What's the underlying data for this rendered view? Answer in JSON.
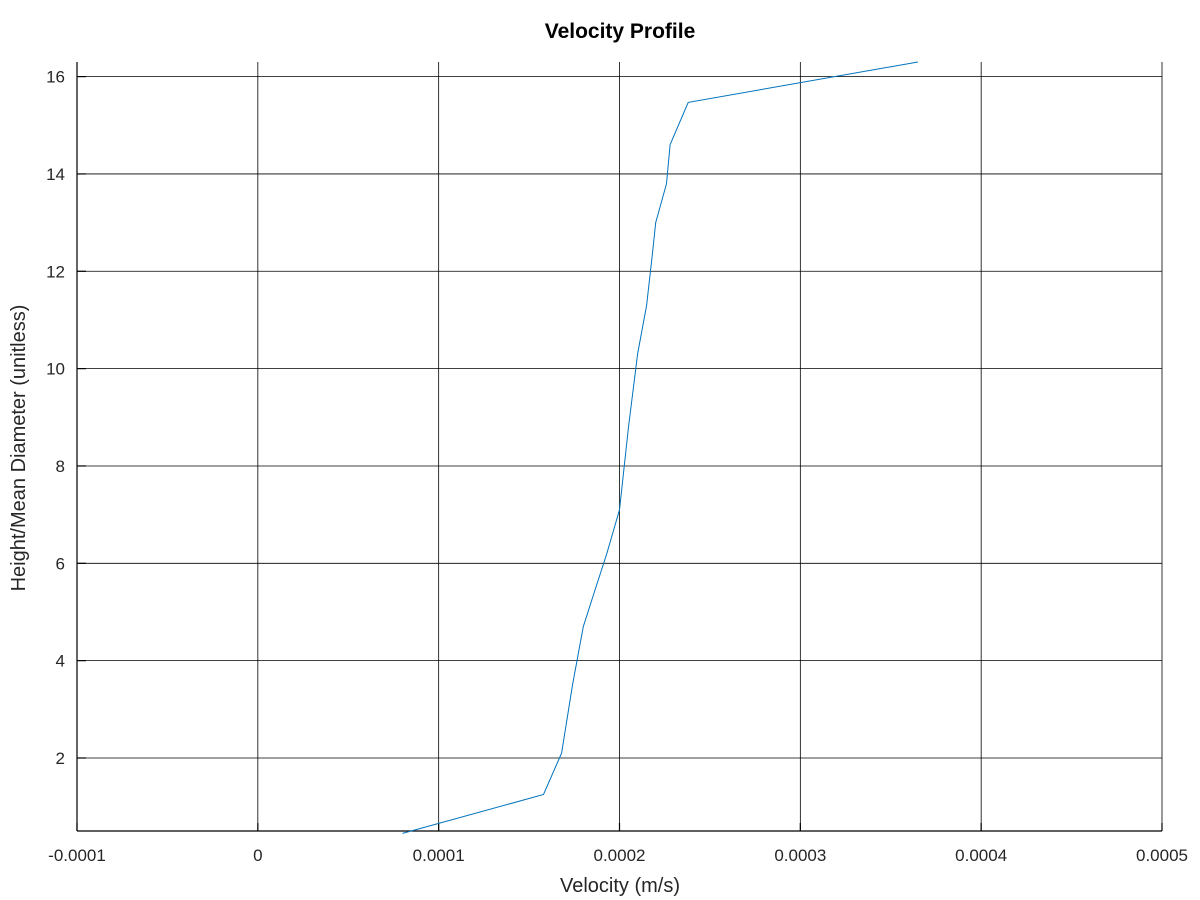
{
  "chart_data": {
    "type": "line",
    "title": "Velocity Profile",
    "xlabel": "Velocity (m/s)",
    "ylabel": "Height/Mean Diameter (unitless)",
    "xlim": [
      -0.0001,
      0.0005
    ],
    "ylim": [
      0.5,
      16.3
    ],
    "xticks": [
      -0.0001,
      0,
      0.0001,
      0.0002,
      0.0003,
      0.0004,
      0.0005
    ],
    "xtick_labels": [
      "-0.0001",
      "0",
      "0.0001",
      "0.0002",
      "0.0003",
      "0.0004",
      "0.0005"
    ],
    "yticks": [
      2,
      4,
      6,
      8,
      10,
      12,
      14,
      16
    ],
    "ytick_labels": [
      "2",
      "4",
      "6",
      "8",
      "10",
      "12",
      "14",
      "16"
    ],
    "grid": true,
    "line_color": "#0072bd",
    "series": [
      {
        "x": [
          8e-05,
          0.000158,
          0.000168,
          0.000174,
          0.00018,
          0.000186,
          0.000193,
          0.0002,
          0.000205,
          0.00021,
          0.000215,
          0.000218,
          0.00022,
          0.000226,
          0.000228,
          0.000238,
          0.000365
        ],
        "y": [
          0.45,
          1.25,
          2.1,
          3.5,
          4.7,
          5.4,
          6.2,
          7.1,
          8.8,
          10.3,
          11.3,
          12.3,
          13.0,
          13.8,
          14.6,
          15.47,
          16.3
        ]
      }
    ]
  }
}
